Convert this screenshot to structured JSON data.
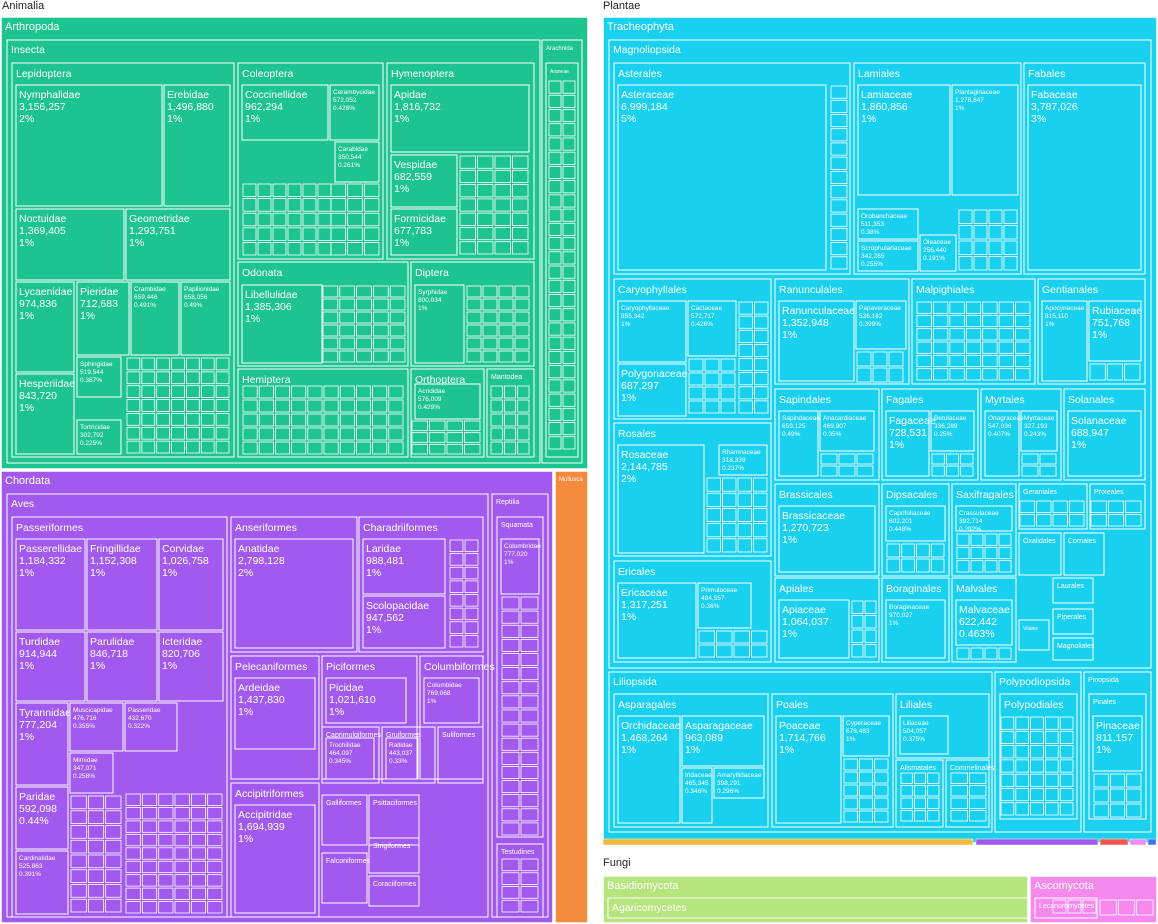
{
  "chart_data": {
    "type": "treemap",
    "colors": {
      "Animalia": "#1ec48f",
      "Plantae": "#1ad0ef",
      "Chordata": "#a259ee",
      "Mollusca": "#f48a3c",
      "Basidiomycota": "#b5e57c",
      "Ascomycota": "#f589ee",
      "border": "#ffffff"
    },
    "kingdoms": [
      {
        "name": "Animalia"
      },
      {
        "name": "Plantae"
      },
      {
        "name": "Fungi"
      }
    ],
    "phyla": [
      {
        "name": "Arthropoda",
        "kingdom": "Animalia"
      },
      {
        "name": "Chordata",
        "kingdom": "Animalia"
      },
      {
        "name": "Mollusca",
        "kingdom": "Animalia"
      },
      {
        "name": "Tracheophyta",
        "kingdom": "Plantae"
      },
      {
        "name": "Basidiomycota",
        "kingdom": "Fungi"
      },
      {
        "name": "Ascomycota",
        "kingdom": "Fungi"
      }
    ],
    "classes": [
      {
        "name": "Insecta",
        "phylum": "Arthropoda"
      },
      {
        "name": "Arachnida",
        "phylum": "Arthropoda"
      },
      {
        "name": "Aves",
        "phylum": "Chordata"
      },
      {
        "name": "Reptilia",
        "phylum": "Chordata"
      },
      {
        "name": "Magnoliopsida",
        "phylum": "Tracheophyta"
      },
      {
        "name": "Liliopsida",
        "phylum": "Tracheophyta"
      },
      {
        "name": "Polypodiopsida",
        "phylum": "Tracheophyta"
      },
      {
        "name": "Pinopsida",
        "phylum": "Tracheophyta"
      },
      {
        "name": "Agaricomycetes",
        "phylum": "Basidiomycota"
      },
      {
        "name": "Lecanoromycetes",
        "phylum": "Ascomycota"
      }
    ],
    "orders": [
      {
        "name": "Lepidoptera",
        "class": "Insecta"
      },
      {
        "name": "Coleoptera",
        "class": "Insecta"
      },
      {
        "name": "Hymenoptera",
        "class": "Insecta"
      },
      {
        "name": "Odonata",
        "class": "Insecta"
      },
      {
        "name": "Diptera",
        "class": "Insecta"
      },
      {
        "name": "Hemiptera",
        "class": "Insecta"
      },
      {
        "name": "Orthoptera",
        "class": "Insecta"
      },
      {
        "name": "Mantodea",
        "class": "Insecta"
      },
      {
        "name": "Araneae",
        "class": "Arachnida"
      },
      {
        "name": "Passeriformes",
        "class": "Aves"
      },
      {
        "name": "Anseriformes",
        "class": "Aves"
      },
      {
        "name": "Charadriiformes",
        "class": "Aves"
      },
      {
        "name": "Pelecaniformes",
        "class": "Aves"
      },
      {
        "name": "Piciformes",
        "class": "Aves"
      },
      {
        "name": "Columbiformes",
        "class": "Aves"
      },
      {
        "name": "Accipitriformes",
        "class": "Aves"
      },
      {
        "name": "Caprimulgiformes",
        "class": "Aves"
      },
      {
        "name": "Gruiformes",
        "class": "Aves"
      },
      {
        "name": "Suliformes",
        "class": "Aves"
      },
      {
        "name": "Galliformes",
        "class": "Aves"
      },
      {
        "name": "Psittaciformes",
        "class": "Aves"
      },
      {
        "name": "Strigiformes",
        "class": "Aves"
      },
      {
        "name": "Falconiformes",
        "class": "Aves"
      },
      {
        "name": "Coraciiformes",
        "class": "Aves"
      },
      {
        "name": "Squamata",
        "class": "Reptilia"
      },
      {
        "name": "Testudines",
        "class": "Reptilia"
      },
      {
        "name": "Asterales",
        "class": "Magnoliopsida"
      },
      {
        "name": "Lamiales",
        "class": "Magnoliopsida"
      },
      {
        "name": "Fabales",
        "class": "Magnoliopsida"
      },
      {
        "name": "Caryophyllales",
        "class": "Magnoliopsida"
      },
      {
        "name": "Ranunculales",
        "class": "Magnoliopsida"
      },
      {
        "name": "Malpighiales",
        "class": "Magnoliopsida"
      },
      {
        "name": "Gentianales",
        "class": "Magnoliopsida"
      },
      {
        "name": "Rosales",
        "class": "Magnoliopsida"
      },
      {
        "name": "Sapindales",
        "class": "Magnoliopsida"
      },
      {
        "name": "Fagales",
        "class": "Magnoliopsida"
      },
      {
        "name": "Myrtales",
        "class": "Magnoliopsida"
      },
      {
        "name": "Solanales",
        "class": "Magnoliopsida"
      },
      {
        "name": "Brassicales",
        "class": "Magnoliopsida"
      },
      {
        "name": "Dipsacales",
        "class": "Magnoliopsida"
      },
      {
        "name": "Saxifragales",
        "class": "Magnoliopsida"
      },
      {
        "name": "Geraniales",
        "class": "Magnoliopsida"
      },
      {
        "name": "Proteales",
        "class": "Magnoliopsida"
      },
      {
        "name": "Ericales",
        "class": "Magnoliopsida"
      },
      {
        "name": "Apiales",
        "class": "Magnoliopsida"
      },
      {
        "name": "Boraginales",
        "class": "Magnoliopsida"
      },
      {
        "name": "Malvales",
        "class": "Magnoliopsida"
      },
      {
        "name": "Oxalidales",
        "class": "Magnoliopsida"
      },
      {
        "name": "Cornales",
        "class": "Magnoliopsida"
      },
      {
        "name": "Laurales",
        "class": "Magnoliopsida"
      },
      {
        "name": "Piperales",
        "class": "Magnoliopsida"
      },
      {
        "name": "Vitales",
        "class": "Magnoliopsida"
      },
      {
        "name": "Magnoliales",
        "class": "Magnoliopsida"
      },
      {
        "name": "Asparagales",
        "class": "Liliopsida"
      },
      {
        "name": "Poales",
        "class": "Liliopsida"
      },
      {
        "name": "Liliales",
        "class": "Liliopsida"
      },
      {
        "name": "Alismatales",
        "class": "Liliopsida"
      },
      {
        "name": "Commelinales",
        "class": "Liliopsida"
      },
      {
        "name": "Polypodiales",
        "class": "Polypodiopsida"
      },
      {
        "name": "Pinales",
        "class": "Pinopsida"
      }
    ],
    "families": [
      {
        "name": "Nymphalidae",
        "order": "Lepidoptera",
        "value": 3156257,
        "pct": "2%"
      },
      {
        "name": "Erebidae",
        "order": "Lepidoptera",
        "value": 1496880,
        "pct": "1%"
      },
      {
        "name": "Noctuidae",
        "order": "Lepidoptera",
        "value": 1369405,
        "pct": "1%"
      },
      {
        "name": "Geometridae",
        "order": "Lepidoptera",
        "value": 1293751,
        "pct": "1%"
      },
      {
        "name": "Lycaenidae",
        "order": "Lepidoptera",
        "value": 974836,
        "pct": "1%"
      },
      {
        "name": "Pieridae",
        "order": "Lepidoptera",
        "value": 712683,
        "pct": "1%"
      },
      {
        "name": "Crambidae",
        "order": "Lepidoptera",
        "value": 659446,
        "pct": "0.491%"
      },
      {
        "name": "Papilionidae",
        "order": "Lepidoptera",
        "value": 658056,
        "pct": "0.49%"
      },
      {
        "name": "Hesperiidae",
        "order": "Lepidoptera",
        "value": 843720,
        "pct": "1%"
      },
      {
        "name": "Sphingidae",
        "order": "Lepidoptera",
        "value": 519544,
        "pct": "0.387%"
      },
      {
        "name": "Tortricidae",
        "order": "Lepidoptera",
        "value": 302792,
        "pct": "0.225%"
      },
      {
        "name": "Coccinellidae",
        "order": "Coleoptera",
        "value": 962294,
        "pct": "1%"
      },
      {
        "name": "Cerambycidae",
        "order": "Coleoptera",
        "value": 572052,
        "pct": "0.426%"
      },
      {
        "name": "Carabidae",
        "order": "Coleoptera",
        "value": 350544,
        "pct": "0.261%"
      },
      {
        "name": "Apidae",
        "order": "Hymenoptera",
        "value": 1816732,
        "pct": "1%"
      },
      {
        "name": "Vespidae",
        "order": "Hymenoptera",
        "value": 682559,
        "pct": "1%"
      },
      {
        "name": "Formicidae",
        "order": "Hymenoptera",
        "value": 677783,
        "pct": "1%"
      },
      {
        "name": "Libellulidae",
        "order": "Odonata",
        "value": 1385306,
        "pct": "1%"
      },
      {
        "name": "Syrphidae",
        "order": "Diptera",
        "value": 800034,
        "pct": "1%"
      },
      {
        "name": "Acrididae",
        "order": "Orthoptera",
        "value": 576009,
        "pct": "0.429%"
      },
      {
        "name": "Passerellidae",
        "order": "Passeriformes",
        "value": 1184332,
        "pct": "1%"
      },
      {
        "name": "Fringillidae",
        "order": "Passeriformes",
        "value": 1152308,
        "pct": "1%"
      },
      {
        "name": "Corvidae",
        "order": "Passeriformes",
        "value": 1026758,
        "pct": "1%"
      },
      {
        "name": "Turdidae",
        "order": "Passeriformes",
        "value": 914944,
        "pct": "1%"
      },
      {
        "name": "Parulidae",
        "order": "Passeriformes",
        "value": 846718,
        "pct": "1%"
      },
      {
        "name": "Icteridae",
        "order": "Passeriformes",
        "value": 820706,
        "pct": "1%"
      },
      {
        "name": "Tyrannidae",
        "order": "Passeriformes",
        "value": 777204,
        "pct": "1%"
      },
      {
        "name": "Muscicapidae",
        "order": "Passeriformes",
        "value": 476716,
        "pct": "0.355%"
      },
      {
        "name": "Passeridae",
        "order": "Passeriformes",
        "value": 432670,
        "pct": "0.322%"
      },
      {
        "name": "Mimidae",
        "order": "Passeriformes",
        "value": 347071,
        "pct": "0.258%"
      },
      {
        "name": "Paridae",
        "order": "Passeriformes",
        "value": 592098,
        "pct": "0.44%"
      },
      {
        "name": "Cardinalidae",
        "order": "Passeriformes",
        "value": 525863,
        "pct": "0.391%"
      },
      {
        "name": "Anatidae",
        "order": "Anseriformes",
        "value": 2798128,
        "pct": "2%"
      },
      {
        "name": "Laridae",
        "order": "Charadriiformes",
        "value": 988481,
        "pct": "1%"
      },
      {
        "name": "Scolopacidae",
        "order": "Charadriiformes",
        "value": 947562,
        "pct": "1%"
      },
      {
        "name": "Ardeidae",
        "order": "Pelecaniformes",
        "value": 1437830,
        "pct": "1%"
      },
      {
        "name": "Picidae",
        "order": "Piciformes",
        "value": 1021610,
        "pct": "1%"
      },
      {
        "name": "Columbidae",
        "order": "Columbiformes",
        "value": 769068,
        "pct": "1%"
      },
      {
        "name": "Accipitridae",
        "order": "Accipitriformes",
        "value": 1694939,
        "pct": "1%"
      },
      {
        "name": "Trochilidae",
        "order": "Caprimulgiformes",
        "value": 464097,
        "pct": "0.345%"
      },
      {
        "name": "Rallidae",
        "order": "Gruiformes",
        "value": 443037,
        "pct": "0.33%"
      },
      {
        "name": "Columbridae",
        "order": "Squamata",
        "value": 777020,
        "pct": "1%"
      },
      {
        "name": "Asteraceae",
        "order": "Asterales",
        "value": 6999184,
        "pct": "5%"
      },
      {
        "name": "Lamiaceae",
        "order": "Lamiales",
        "value": 1860856,
        "pct": "1%"
      },
      {
        "name": "Plantaginaceae",
        "order": "Lamiales",
        "value": 1278647,
        "pct": "1%"
      },
      {
        "name": "Orobanchaceae",
        "order": "Lamiales",
        "value": 511353,
        "pct": "0.38%"
      },
      {
        "name": "Scrophulariaceae",
        "order": "Lamiales",
        "value": 342265,
        "pct": "0.255%"
      },
      {
        "name": "Oleaceae",
        "order": "Lamiales",
        "value": 256440,
        "pct": "0.191%"
      },
      {
        "name": "Fabaceae",
        "order": "Fabales",
        "value": 3787026,
        "pct": "3%"
      },
      {
        "name": "Caryophyllaceae",
        "order": "Caryophyllales",
        "value": 855342,
        "pct": "1%"
      },
      {
        "name": "Cactaceae",
        "order": "Caryophyllales",
        "value": 572717,
        "pct": "0.426%"
      },
      {
        "name": "Polygonaceae",
        "order": "Caryophyllales",
        "value": 687297,
        "pct": "1%"
      },
      {
        "name": "Ranunculaceae",
        "order": "Ranunculales",
        "value": 1352948,
        "pct": "1%"
      },
      {
        "name": "Papaveraceae",
        "order": "Ranunculales",
        "value": 536162,
        "pct": "0.399%"
      },
      {
        "name": "Apocynaceae",
        "order": "Gentianales",
        "value": 815110,
        "pct": "1%"
      },
      {
        "name": "Rubiaceae",
        "order": "Gentianales",
        "value": 751768,
        "pct": "1%"
      },
      {
        "name": "Rosaceae",
        "order": "Rosales",
        "value": 2144785,
        "pct": "2%"
      },
      {
        "name": "Rhamnaceae",
        "order": "Rosales",
        "value": 318339,
        "pct": "0.237%"
      },
      {
        "name": "Sapindaceae",
        "order": "Sapindales",
        "value": 659125,
        "pct": "0.49%"
      },
      {
        "name": "Anacardiaceae",
        "order": "Sapindales",
        "value": 469907,
        "pct": "0.35%"
      },
      {
        "name": "Fagaceae",
        "order": "Fagales",
        "value": 728531,
        "pct": "1%"
      },
      {
        "name": "Betulaceae",
        "order": "Fagales",
        "value": 336289,
        "pct": "0.25%"
      },
      {
        "name": "Onagraceae",
        "order": "Myrtales",
        "value": 547036,
        "pct": "0.407%"
      },
      {
        "name": "Myrtaceae",
        "order": "Myrtales",
        "value": 327193,
        "pct": "0.243%"
      },
      {
        "name": "Solanaceae",
        "order": "Solanales",
        "value": 688947,
        "pct": "1%"
      },
      {
        "name": "Brassicaceae",
        "order": "Brassicales",
        "value": 1270723,
        "pct": "1%"
      },
      {
        "name": "Caprifoliaceae",
        "order": "Dipsacales",
        "value": 602201,
        "pct": "0.448%"
      },
      {
        "name": "Crassulaceae",
        "order": "Saxifragales",
        "value": 392714,
        "pct": "0.292%"
      },
      {
        "name": "Ericaceae",
        "order": "Ericales",
        "value": 1317251,
        "pct": "1%"
      },
      {
        "name": "Primulaceae",
        "order": "Ericales",
        "value": 484557,
        "pct": "0.36%"
      },
      {
        "name": "Apiaceae",
        "order": "Apiales",
        "value": 1064037,
        "pct": "1%"
      },
      {
        "name": "Boraginaceae",
        "order": "Boraginales",
        "value": 970027,
        "pct": "1%"
      },
      {
        "name": "Malvaceae",
        "order": "Malvales",
        "value": 622442,
        "pct": "0.463%"
      },
      {
        "name": "Orchidaceae",
        "order": "Asparagales",
        "value": 1468264,
        "pct": "1%"
      },
      {
        "name": "Asparagaceae",
        "order": "Asparagales",
        "value": 963089,
        "pct": "1%"
      },
      {
        "name": "Iridaceae",
        "order": "Asparagales",
        "value": 465345,
        "pct": "0.346%"
      },
      {
        "name": "Amaryllidaceae",
        "order": "Asparagales",
        "value": 398291,
        "pct": "0.296%"
      },
      {
        "name": "Poaceae",
        "order": "Poales",
        "value": 1714766,
        "pct": "1%"
      },
      {
        "name": "Cyperaceae",
        "order": "Poales",
        "value": 678483,
        "pct": "1%"
      },
      {
        "name": "Liliaceae",
        "order": "Liliales",
        "value": 504057,
        "pct": "0.375%"
      },
      {
        "name": "Pinaceae",
        "order": "Pinales",
        "value": 811157,
        "pct": "1%"
      }
    ]
  }
}
